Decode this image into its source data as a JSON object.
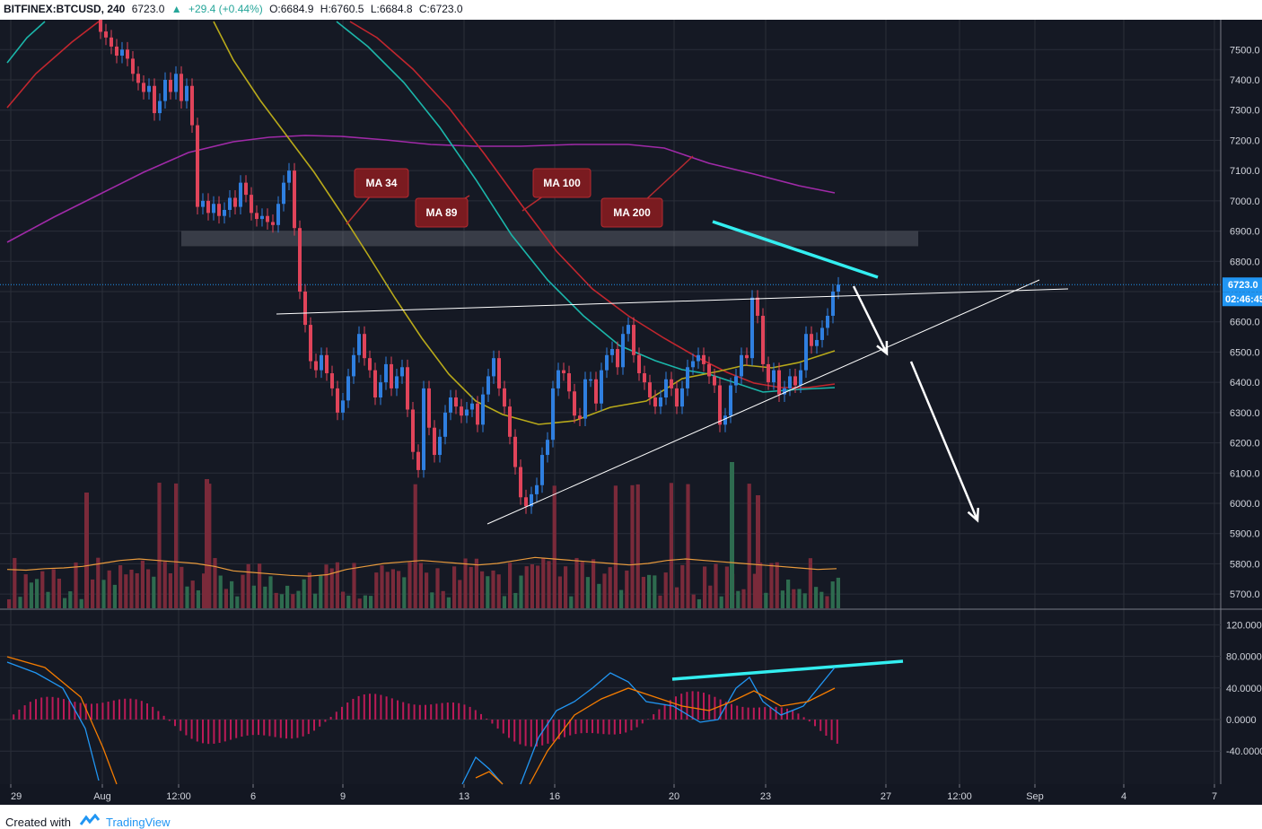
{
  "header": {
    "symbol": "BITFINEX:BTCUSD, 240",
    "last": "6723.0",
    "change": "+29.4 (+0.44%)",
    "open": "O:6684.9",
    "high": "H:6760.5",
    "low": "L:6684.8",
    "close": "C:6723.0"
  },
  "footer": {
    "created_with": "Created with",
    "brand": "TradingView"
  },
  "colors": {
    "background": "#151924",
    "grid": "#2a2e39",
    "up": "#2f7fe0",
    "down": "#e0445a",
    "ma34": "#b8a91a",
    "ma89": "#1bb6aa",
    "ma100": "#c2262e",
    "ma200": "#a02aa8",
    "annotation": "#33eef0",
    "arrow": "#ffffff",
    "label_bg": "#7a1b20",
    "price_tag": "#2196f3"
  },
  "chart_data": [
    {
      "type": "candlestick",
      "x_ticks": [
        "29",
        "Aug",
        "12:00",
        "6",
        "9",
        "13",
        "16",
        "20",
        "23",
        "27",
        "12:00",
        "Sep",
        "4",
        "7"
      ],
      "y_ticks": [
        "7500.0",
        "7400.0",
        "7300.0",
        "7200.0",
        "7100.0",
        "7000.0",
        "6900.0",
        "6800.0",
        "6700.0",
        "6600.0",
        "6500.0",
        "6400.0",
        "6300.0",
        "6200.0",
        "6100.0",
        "6000.0",
        "5900.0",
        "5800.0",
        "5700.0"
      ],
      "ylim": [
        5650,
        7600
      ],
      "last_price_label": "6723.0",
      "countdown_label": "02:46:45",
      "ma_labels": [
        "MA 34",
        "MA 89",
        "MA 100",
        "MA 200"
      ],
      "candles_close": [
        7560,
        7540,
        7510,
        7480,
        7500,
        7470,
        7420,
        7390,
        7360,
        7380,
        7290,
        7330,
        7400,
        7360,
        7420,
        7330,
        7380,
        7250,
        6980,
        7000,
        6960,
        6990,
        6950,
        6970,
        7010,
        6980,
        7060,
        7020,
        6960,
        6940,
        6950,
        6930,
        6920,
        6990,
        7060,
        7100,
        6910,
        6700,
        6590,
        6470,
        6440,
        6490,
        6430,
        6380,
        6300,
        6340,
        6420,
        6490,
        6560,
        6480,
        6440,
        6350,
        6400,
        6460,
        6380,
        6420,
        6450,
        6310,
        6170,
        6110,
        6380,
        6250,
        6160,
        6220,
        6300,
        6350,
        6320,
        6290,
        6310,
        6330,
        6260,
        6360,
        6420,
        6480,
        6380,
        6320,
        6220,
        6120,
        6020,
        5990,
        6030,
        6060,
        6160,
        6210,
        6380,
        6440,
        6430,
        6370,
        6290,
        6280,
        6410,
        6410,
        6330,
        6440,
        6490,
        6510,
        6450,
        6560,
        6590,
        6490,
        6430,
        6400,
        6350,
        6320,
        6350,
        6410,
        6380,
        6320,
        6380,
        6450,
        6470,
        6490,
        6460,
        6420,
        6390,
        6260,
        6290,
        6390,
        6420,
        6490,
        6480,
        6680,
        6620,
        6460,
        6400,
        6440,
        6360,
        6380,
        6420,
        6390,
        6440,
        6560,
        6520,
        6540,
        6580,
        6620,
        6700,
        6723
      ],
      "volume_ylim": [
        0,
        600
      ],
      "volume_ma_values": [
        260,
        255,
        265,
        270,
        280,
        300,
        320,
        330,
        320,
        310,
        300,
        280,
        250,
        240,
        230,
        220,
        215,
        225,
        260,
        280,
        300,
        310,
        320,
        310,
        300,
        290,
        300,
        320,
        340,
        330,
        320,
        310,
        300,
        290,
        300,
        320,
        330,
        320,
        310,
        300,
        290,
        280,
        270,
        260,
        265
      ],
      "macd": {
        "ylim": [
          -80,
          130
        ],
        "y_ticks": [
          "120.0000",
          "80.0000",
          "40.0000",
          "0.0000",
          "-40.0000"
        ]
      },
      "drawings": [
        "horizontal resistance band 6850-6900",
        "ascending triangle",
        "down-sloping trend line",
        "bearish arrows"
      ]
    }
  ]
}
